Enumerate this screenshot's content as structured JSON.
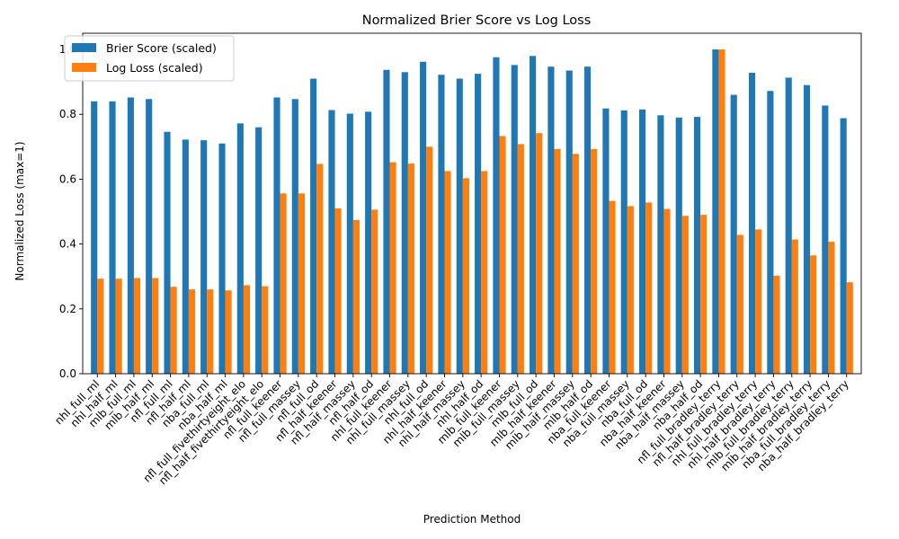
{
  "chart_data": {
    "type": "bar",
    "title": "Normalized Brier Score vs Log Loss",
    "xlabel": "Prediction Method",
    "ylabel": "Normalized Loss (max=1)",
    "ylim": [
      0,
      1.05
    ],
    "yticks": [
      "0.0",
      "0.2",
      "0.4",
      "0.6",
      "0.8",
      "1.0"
    ],
    "legend_position": "top-left",
    "grid": false,
    "categories": [
      "nhl_full_ml",
      "nhl_half_ml",
      "mlb_full_ml",
      "mlb_half_ml",
      "nfl_full_ml",
      "nfl_half_ml",
      "nba_full_ml",
      "nba_half_ml",
      "nfl_full_fivethirtyeight_elo",
      "nfl_half_fivethirtyeight_elo",
      "nfl_full_keener",
      "nfl_full_massey",
      "nfl_full_od",
      "nfl_half_keener",
      "nfl_half_massey",
      "nfl_half_od",
      "nhl_full_keener",
      "nhl_full_massey",
      "nhl_full_od",
      "nhl_half_keener",
      "nhl_half_massey",
      "nhl_half_od",
      "mlb_full_keener",
      "mlb_full_massey",
      "mlb_full_od",
      "mlb_half_keener",
      "mlb_half_massey",
      "mlb_half_od",
      "nba_full_keener",
      "nba_full_massey",
      "nba_full_od",
      "nba_half_keener",
      "nba_half_massey",
      "nba_half_od",
      "nfl_full_bradley_terry",
      "nfl_half_bradley_terry",
      "nhl_full_bradley_terry",
      "nhl_half_bradley_terry",
      "mlb_full_bradley_terry",
      "mlb_half_bradley_terry",
      "nba_full_bradley_terry",
      "nba_half_bradley_terry"
    ],
    "series": [
      {
        "name": "Brier Score (scaled)",
        "color": "#1f77b4",
        "values": [
          0.84,
          0.84,
          0.852,
          0.847,
          0.746,
          0.722,
          0.72,
          0.71,
          0.772,
          0.76,
          0.852,
          0.847,
          0.91,
          0.813,
          0.802,
          0.808,
          0.937,
          0.93,
          0.962,
          0.922,
          0.91,
          0.925,
          0.976,
          0.952,
          0.98,
          0.947,
          0.935,
          0.947,
          0.818,
          0.812,
          0.815,
          0.797,
          0.79,
          0.792,
          1.0,
          0.86,
          0.928,
          0.872,
          0.913,
          0.89,
          0.827,
          0.788
        ]
      },
      {
        "name": "Log Loss (scaled)",
        "color": "#ff7f0e",
        "values": [
          0.293,
          0.293,
          0.295,
          0.295,
          0.268,
          0.26,
          0.26,
          0.257,
          0.273,
          0.27,
          0.556,
          0.556,
          0.647,
          0.51,
          0.474,
          0.506,
          0.652,
          0.648,
          0.7,
          0.625,
          0.603,
          0.625,
          0.733,
          0.708,
          0.742,
          0.693,
          0.678,
          0.693,
          0.533,
          0.517,
          0.528,
          0.508,
          0.487,
          0.49,
          1.0,
          0.428,
          0.445,
          0.302,
          0.414,
          0.365,
          0.407,
          0.282
        ]
      }
    ]
  }
}
